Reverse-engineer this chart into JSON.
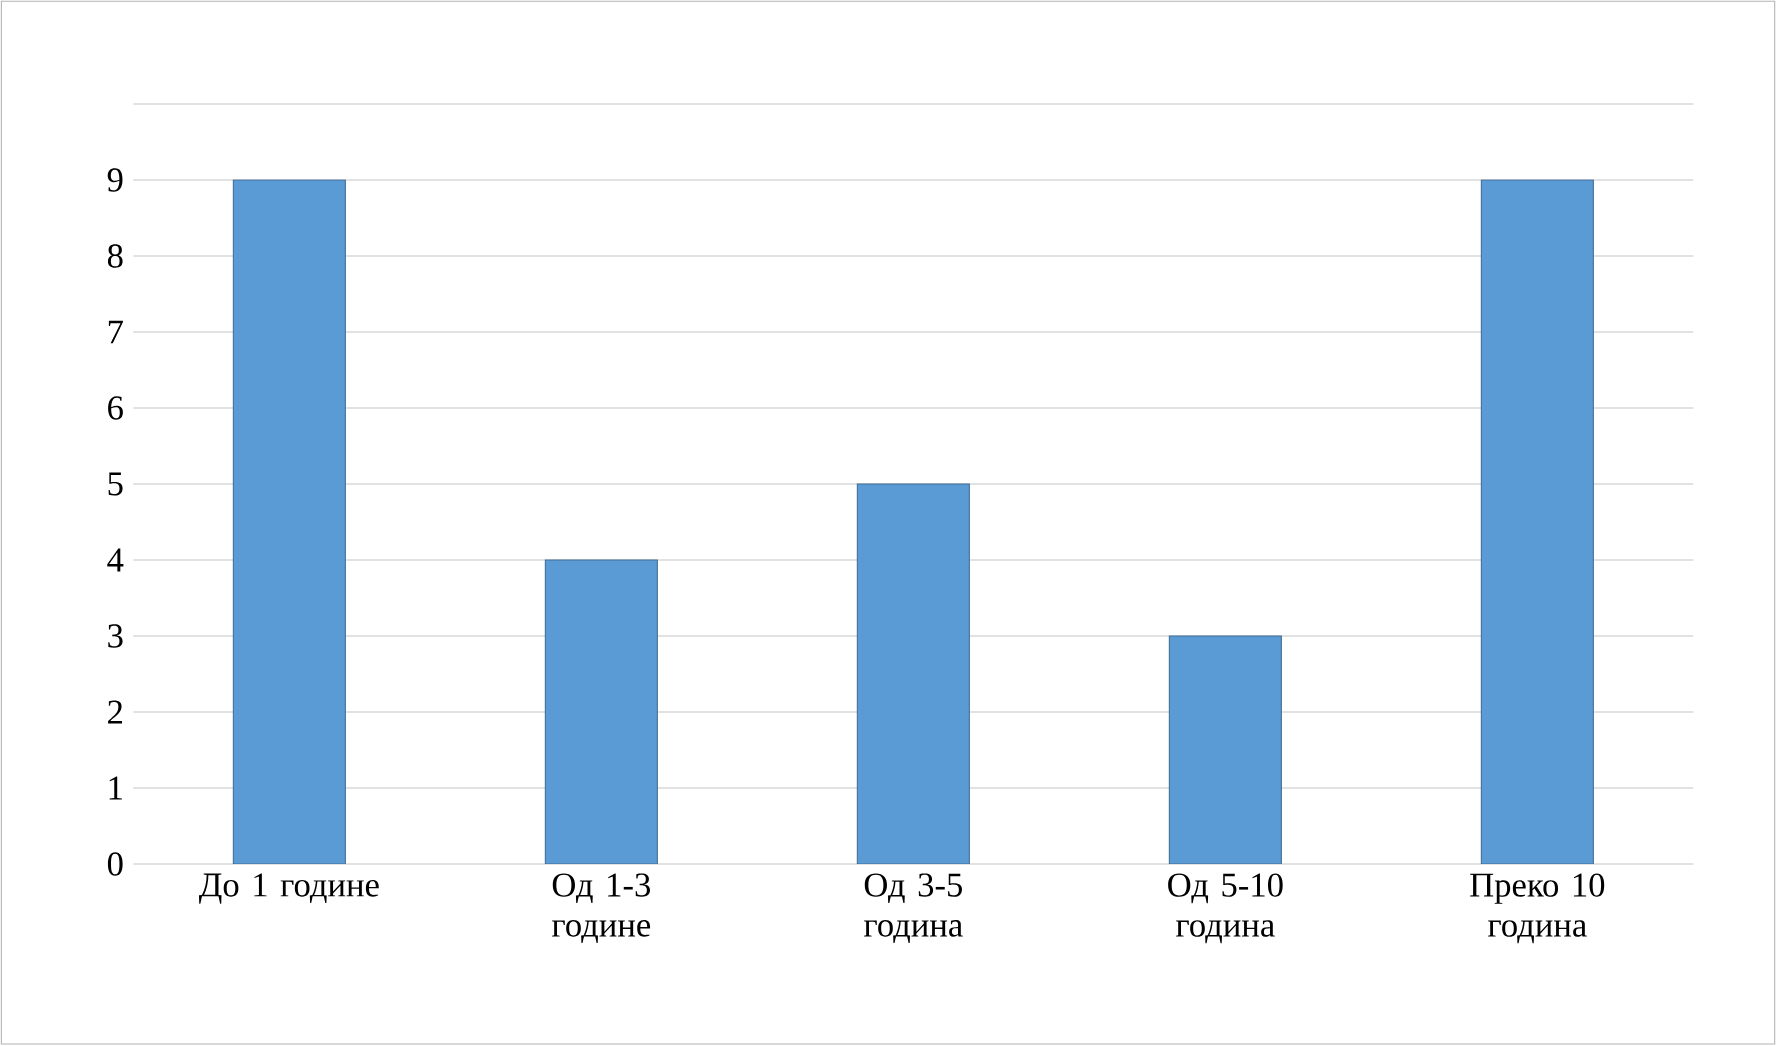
{
  "chart_data": {
    "type": "bar",
    "categories": [
      "До 1 године",
      "Од 1-3 године",
      "Од 3-5 година",
      "Од 5-10 година",
      "Преко 10 година"
    ],
    "values": [
      9,
      4,
      5,
      3,
      9
    ],
    "color": "#5b9bd5",
    "ylim": [
      0,
      10
    ],
    "yticks": [
      0,
      1,
      2,
      3,
      4,
      5,
      6,
      7,
      8,
      9,
      {
        "value": 10,
        "label": null
      }
    ],
    "grid": "y",
    "legend": false
  }
}
